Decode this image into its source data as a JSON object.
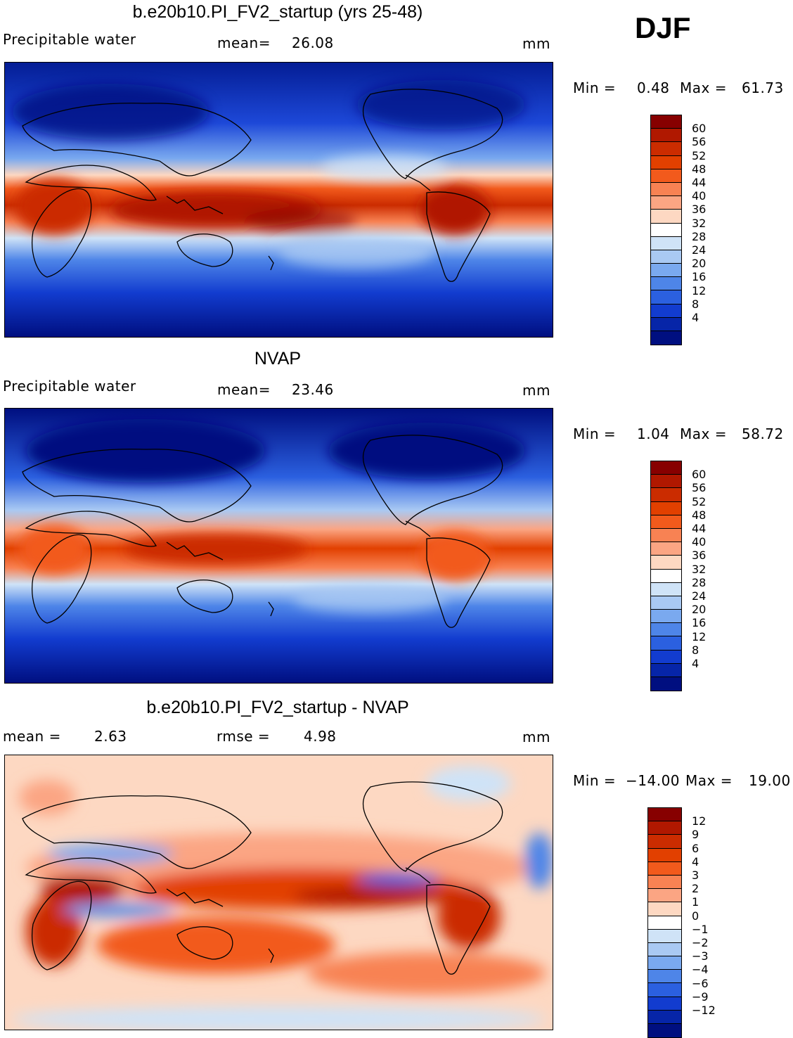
{
  "season": "DJF",
  "panels": [
    {
      "title": "b.e20b10.PI_FV2_startup (yrs 25-48)",
      "left_label": "Precipitable water",
      "stat1_label": "mean=",
      "stat1_value": "26.08",
      "units": "mm",
      "min_label": "Min =",
      "min_value": "0.48",
      "max_label": "Max =",
      "max_value": "61.73",
      "colorbar": {
        "ticks": [
          "60",
          "56",
          "52",
          "48",
          "44",
          "40",
          "36",
          "32",
          "28",
          "24",
          "20",
          "16",
          "12",
          "8",
          "4"
        ],
        "colors": [
          "#870000",
          "#b01800",
          "#cb2c00",
          "#e24000",
          "#f25a1c",
          "#f88253",
          "#fba583",
          "#fdd8c2",
          "#ffffff",
          "#cfe3f7",
          "#a9c9f3",
          "#7aa9ef",
          "#4e85e8",
          "#2b60e0",
          "#123ccf",
          "#0625a8",
          "#000f80"
        ]
      }
    },
    {
      "title": "NVAP",
      "left_label": "Precipitable water",
      "stat1_label": "mean=",
      "stat1_value": "23.46",
      "units": "mm",
      "min_label": "Min =",
      "min_value": "1.04",
      "max_label": "Max =",
      "max_value": "58.72",
      "colorbar": {
        "ticks": [
          "60",
          "56",
          "52",
          "48",
          "44",
          "40",
          "36",
          "32",
          "28",
          "24",
          "20",
          "16",
          "12",
          "8",
          "4"
        ],
        "colors": [
          "#870000",
          "#b01800",
          "#cb2c00",
          "#e24000",
          "#f25a1c",
          "#f88253",
          "#fba583",
          "#fdd8c2",
          "#ffffff",
          "#cfe3f7",
          "#a9c9f3",
          "#7aa9ef",
          "#4e85e8",
          "#2b60e0",
          "#123ccf",
          "#0625a8",
          "#000f80"
        ]
      }
    },
    {
      "title": "b.e20b10.PI_FV2_startup - NVAP",
      "stat1_label": "mean =",
      "stat1_value": "2.63",
      "stat2_label": "rmse =",
      "stat2_value": "4.98",
      "units": "mm",
      "min_label": "Min =",
      "min_value": "−14.00",
      "max_label": "Max =",
      "max_value": "19.00",
      "colorbar": {
        "ticks": [
          "12",
          "9",
          "6",
          "4",
          "3",
          "2",
          "1",
          "0",
          "−1",
          "−2",
          "−3",
          "−4",
          "−6",
          "−9",
          "−12"
        ],
        "colors": [
          "#870000",
          "#b01800",
          "#cb2c00",
          "#e24000",
          "#f25a1c",
          "#f88253",
          "#fba583",
          "#fdd8c2",
          "#ffffff",
          "#cfe3f7",
          "#a9c9f3",
          "#7aa9ef",
          "#4e85e8",
          "#2b60e0",
          "#123ccf",
          "#0625a8",
          "#000f80"
        ]
      }
    }
  ]
}
